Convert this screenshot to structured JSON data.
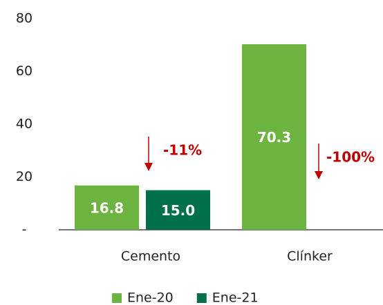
{
  "chart_data": {
    "type": "bar",
    "categories": [
      "Cemento",
      "Clínker"
    ],
    "series": [
      {
        "name": "Ene-20",
        "color": "#6db33f",
        "values": [
          16.8,
          70.3
        ],
        "value_labels": [
          "16.8",
          "70.3"
        ]
      },
      {
        "name": "Ene-21",
        "color": "#00704a",
        "values": [
          15.0,
          0
        ],
        "value_labels": [
          "15.0",
          null
        ]
      }
    ],
    "ylim": [
      0,
      80
    ],
    "yticks": [
      {
        "value": 0,
        "label": "-"
      },
      20,
      40,
      60,
      80
    ],
    "annotations": [
      {
        "text": "-11%"
      },
      {
        "text": "-100%"
      }
    ],
    "legend": "bottom"
  }
}
